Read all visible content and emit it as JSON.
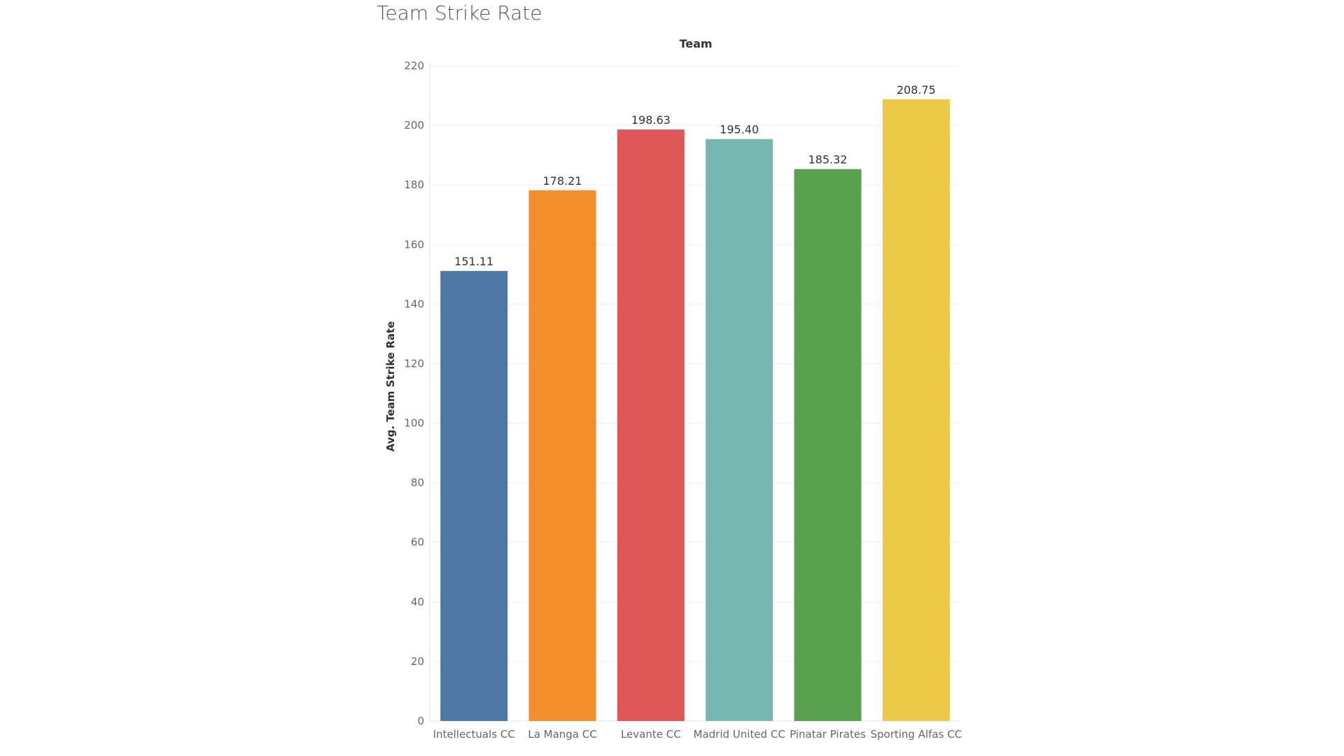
{
  "chart_data": {
    "type": "bar",
    "title": "Team Strike Rate",
    "column_header": "Team",
    "xlabel": "",
    "ylabel": "Avg. Team Strike Rate",
    "ylim": [
      0,
      220
    ],
    "yticks": [
      0,
      20,
      40,
      60,
      80,
      100,
      120,
      140,
      160,
      180,
      200,
      220
    ],
    "grid": true,
    "categories": [
      "Intellectuals CC",
      "La Manga CC",
      "Levante CC",
      "Madrid United CC",
      "Pinatar Pirates",
      "Sporting Alfas CC"
    ],
    "values": [
      151.11,
      178.21,
      198.63,
      195.4,
      185.32,
      208.75
    ],
    "value_labels": [
      "151.11",
      "178.21",
      "198.63",
      "195.40",
      "185.32",
      "208.75"
    ],
    "colors": [
      "#4e79a7",
      "#f28e2b",
      "#e15759",
      "#76b7b2",
      "#59a14f",
      "#edc948"
    ]
  }
}
